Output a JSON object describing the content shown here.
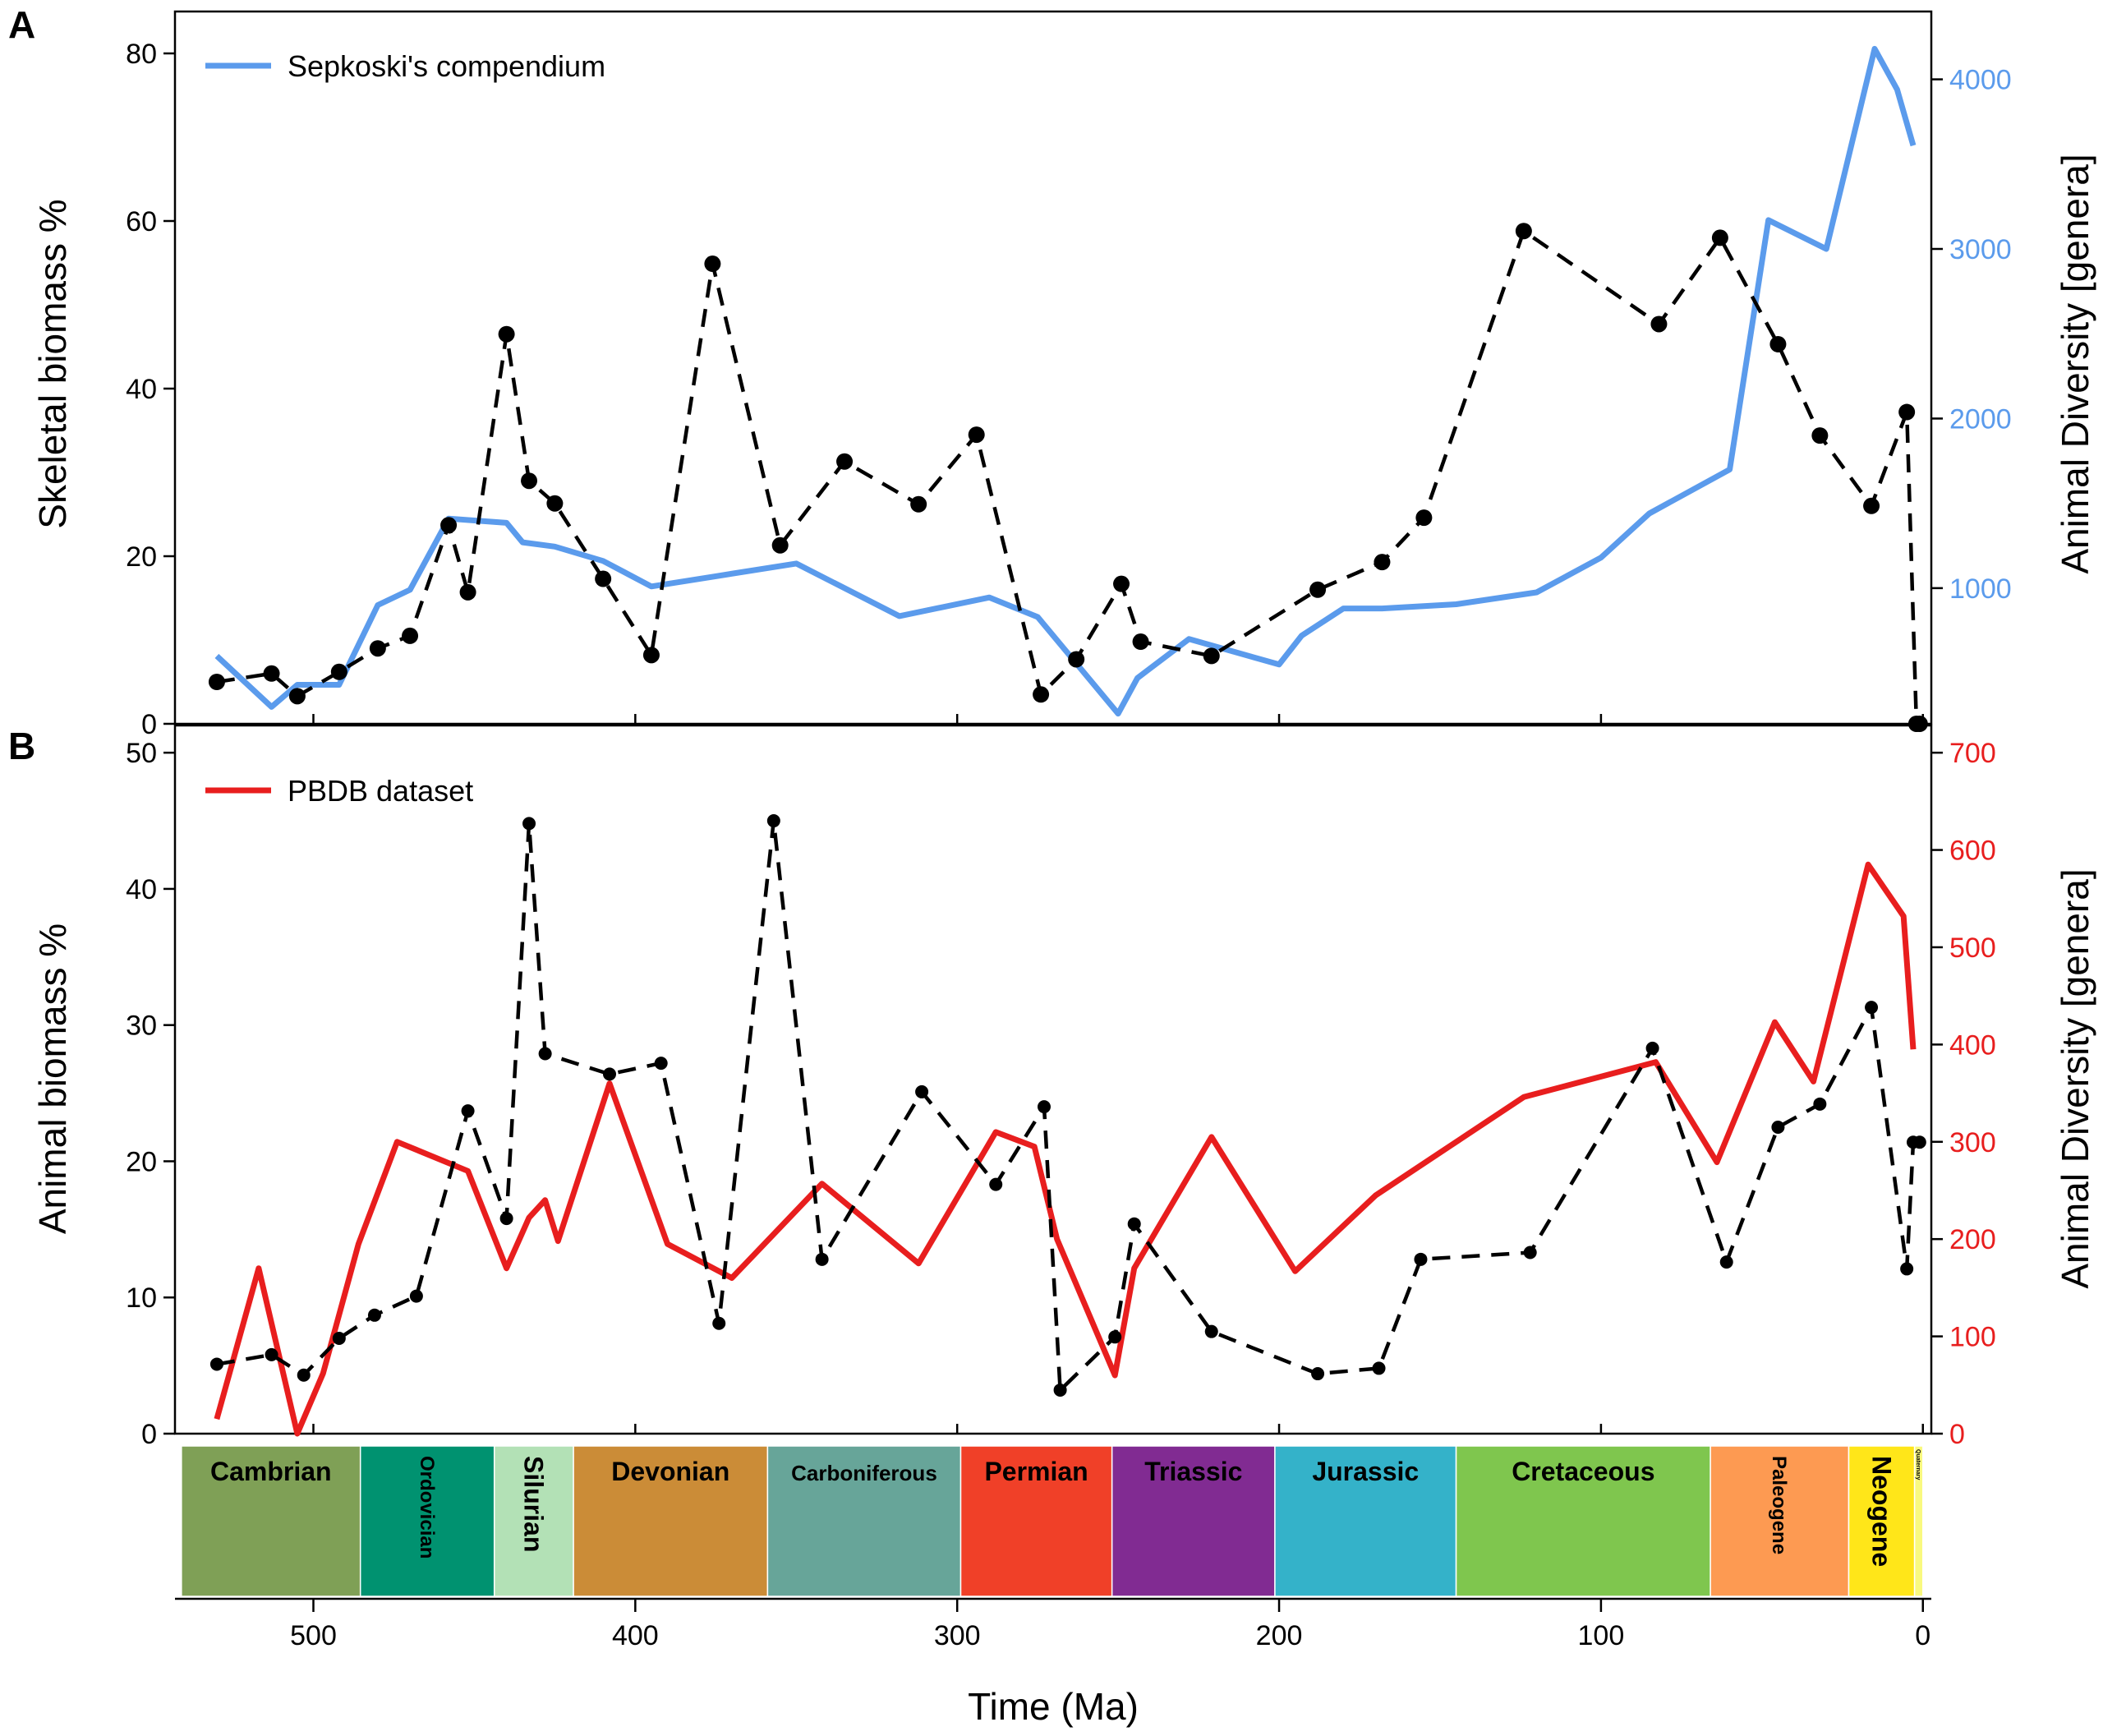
{
  "colors": {
    "sepkoski": "#5b9bec",
    "pbdb": "#e81e1e",
    "biomass": "#000000"
  },
  "x_axis": {
    "label": "Time (Ma)",
    "ticks": [
      500,
      400,
      300,
      200,
      100,
      0
    ],
    "range": [
      543,
      0
    ]
  },
  "chart_data": [
    {
      "panel": "A",
      "type": "line",
      "xlabel": "Time (Ma)",
      "ylabel": "Skeletal biomass %",
      "ylabel_right": "Animal Diversity [genera]",
      "xlim": [
        543,
        0
      ],
      "ylim": [
        0,
        85
      ],
      "ylim_right": [
        200,
        4400
      ],
      "yticks": [
        0,
        20,
        40,
        60,
        80
      ],
      "yticks_right": [
        1000,
        2000,
        3000,
        4000
      ],
      "legend": "top-left",
      "series": [
        {
          "name": "Sepkoski's compendium",
          "axis": "right",
          "style": "solid",
          "x": [
            530,
            513,
            505,
            492,
            480,
            470,
            458,
            440,
            435,
            425,
            410,
            395,
            375,
            350,
            318,
            290,
            275,
            250,
            244,
            228,
            200,
            193,
            180,
            168,
            145,
            120,
            100,
            85,
            60,
            48,
            30,
            15,
            8,
            3
          ],
          "values": [
            600,
            300,
            430,
            430,
            900,
            990,
            1410,
            1385,
            1270,
            1245,
            1160,
            1010,
            1070,
            1145,
            835,
            945,
            830,
            260,
            470,
            700,
            550,
            720,
            880,
            880,
            905,
            975,
            1180,
            1440,
            1700,
            3170,
            3000,
            4180,
            3940,
            3610
          ]
        },
        {
          "name": "",
          "axis": "left",
          "style": "dashed-markers",
          "x": [
            530,
            513,
            505,
            492,
            480,
            470,
            458,
            452,
            440,
            433,
            425,
            410,
            395,
            376,
            355,
            335,
            312,
            294,
            274,
            263,
            249,
            243,
            221,
            188,
            168,
            155,
            124,
            82,
            63,
            45,
            32,
            16,
            5,
            2,
            1
          ],
          "values": [
            5,
            6,
            3.3,
            6.2,
            9,
            10.5,
            23.7,
            15.7,
            46.5,
            29,
            26.3,
            17.3,
            8.2,
            54.9,
            21.3,
            31.3,
            26.2,
            34.5,
            3.5,
            7.7,
            16.7,
            9.8,
            8.1,
            16,
            19.3,
            24.6,
            58.8,
            47.7,
            58,
            45.3,
            34.4,
            26,
            37.2,
            0,
            0
          ]
        }
      ]
    },
    {
      "panel": "B",
      "type": "line",
      "xlabel": "Time (Ma)",
      "ylabel": "Animal biomass %",
      "ylabel_right": "Animal Diversity [genera]",
      "xlim": [
        543,
        0
      ],
      "ylim": [
        0,
        52
      ],
      "ylim_right": [
        0,
        728
      ],
      "yticks": [
        0,
        10,
        20,
        30,
        40,
        50
      ],
      "yticks_right": [
        0,
        100,
        200,
        300,
        400,
        500,
        600,
        700
      ],
      "legend": "top-left",
      "series": [
        {
          "name": "PBDB dataset",
          "axis": "right",
          "style": "solid",
          "x": [
            530,
            517,
            505,
            497,
            486,
            474,
            452,
            440,
            433,
            428,
            424,
            408,
            390,
            370,
            342,
            312,
            288,
            276,
            269,
            251,
            245,
            221,
            195,
            170,
            124,
            83,
            64,
            46,
            34,
            17,
            6,
            3
          ],
          "values": [
            15,
            170,
            0,
            62,
            195,
            300,
            270,
            170,
            222,
            240,
            198,
            360,
            195,
            160,
            257,
            175,
            310,
            295,
            200,
            60,
            170,
            305,
            167,
            245,
            346,
            382,
            279,
            423,
            362,
            585,
            532,
            395
          ]
        },
        {
          "name": "",
          "axis": "left",
          "style": "dashed-markers",
          "x": [
            530,
            513,
            503,
            492,
            481,
            468,
            452,
            440,
            433,
            428,
            408,
            392,
            374,
            357,
            342,
            311,
            288,
            273,
            268,
            251,
            245,
            221,
            188,
            169,
            156,
            122,
            84,
            61,
            45,
            32,
            16,
            5,
            3,
            1
          ],
          "values": [
            5.1,
            5.8,
            4.3,
            7,
            8.7,
            10.1,
            23.7,
            15.8,
            44.8,
            27.9,
            26.4,
            27.2,
            8.1,
            45,
            12.8,
            25.1,
            18.3,
            24,
            3.2,
            7.1,
            15.4,
            7.5,
            4.4,
            4.8,
            12.8,
            13.3,
            28.3,
            12.6,
            22.5,
            24.2,
            31.3,
            12.1,
            21.4,
            21.4
          ]
        }
      ]
    }
  ],
  "panels": {
    "a": {
      "letter": "A",
      "ylabel": "Skeletal biomass %",
      "ylabel_right": "Animal Diversity [genera]",
      "legend": "Sepkoski's compendium"
    },
    "b": {
      "letter": "B",
      "ylabel": "Animal biomass %",
      "ylabel_right": "Animal Diversity [genera]",
      "legend": "PBDB dataset"
    }
  },
  "periods": [
    {
      "name": "Cambrian",
      "start": 541,
      "end": 485.4,
      "color": "#7fa056",
      "orient": "h"
    },
    {
      "name": "Ordovician",
      "start": 485.4,
      "end": 443.8,
      "color": "#009270",
      "orient": "v"
    },
    {
      "name": "Silurian",
      "start": 443.8,
      "end": 419.2,
      "color": "#b3e1b6",
      "orient": "v"
    },
    {
      "name": "Devonian",
      "start": 419.2,
      "end": 358.9,
      "color": "#cb8c37",
      "orient": "h"
    },
    {
      "name": "Carboniferous",
      "start": 358.9,
      "end": 298.9,
      "color": "#67a599",
      "orient": "h"
    },
    {
      "name": "Permian",
      "start": 298.9,
      "end": 251.9,
      "color": "#f04028",
      "orient": "h"
    },
    {
      "name": "Triassic",
      "start": 251.9,
      "end": 201.3,
      "color": "#812b92",
      "orient": "h"
    },
    {
      "name": "Jurassic",
      "start": 201.3,
      "end": 145,
      "color": "#34b2c9",
      "orient": "h"
    },
    {
      "name": "Cretaceous",
      "start": 145,
      "end": 66,
      "color": "#7fc64e",
      "orient": "h"
    },
    {
      "name": "Paleogene",
      "start": 66,
      "end": 23.03,
      "color": "#fd9a52",
      "orient": "v"
    },
    {
      "name": "Neogene",
      "start": 23.03,
      "end": 2.58,
      "color": "#ffe619",
      "orient": "v"
    },
    {
      "name": "Quaternary",
      "start": 2.58,
      "end": 0,
      "color": "#f9f97f",
      "orient": "v"
    }
  ]
}
